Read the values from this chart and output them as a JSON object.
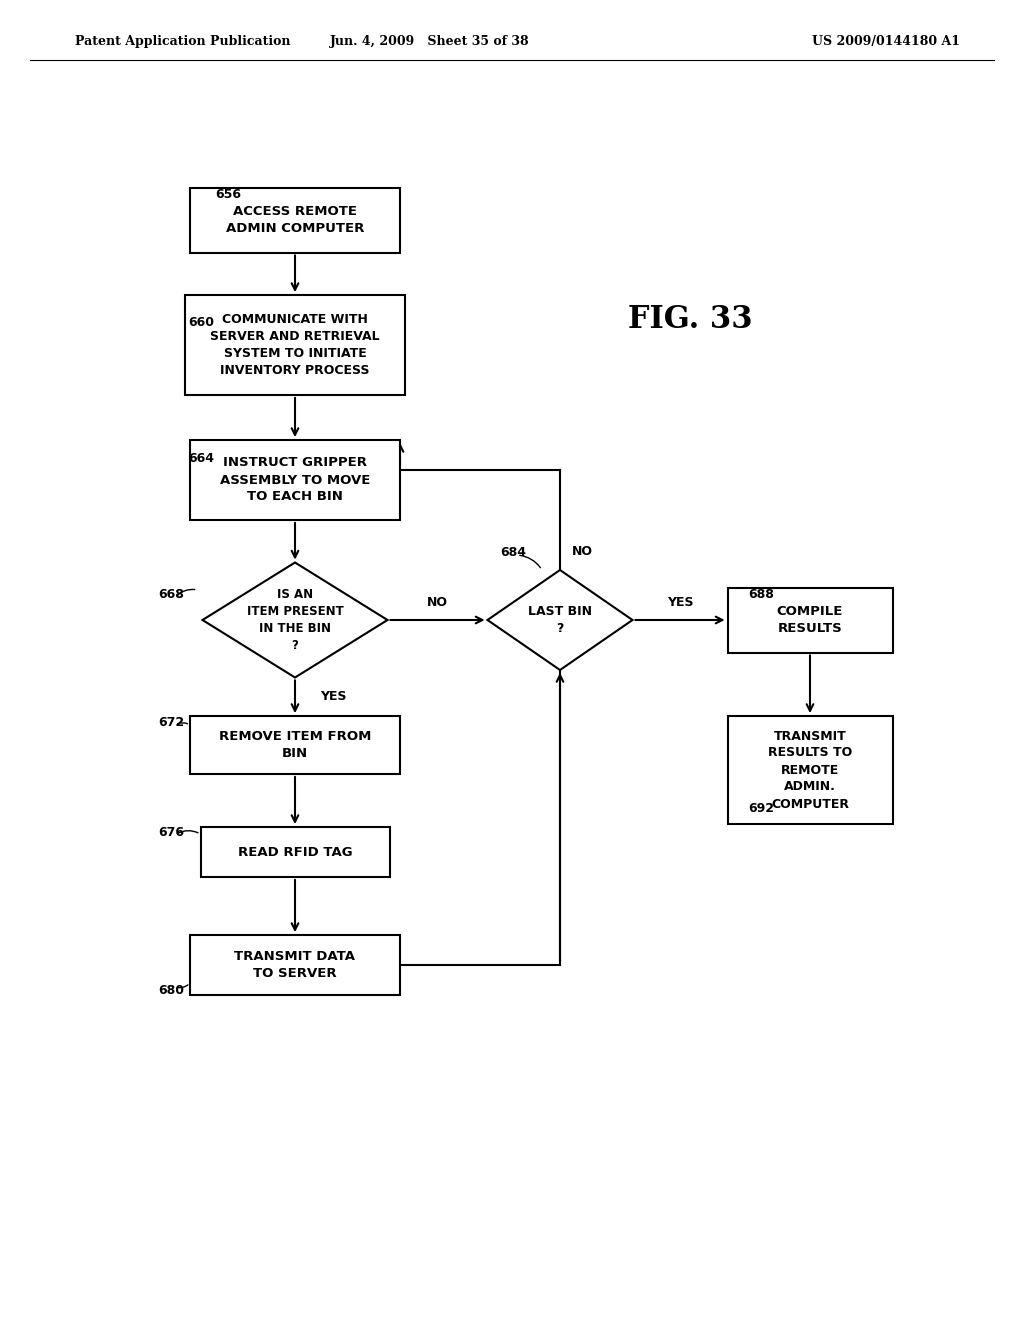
{
  "header_left": "Patent Application Publication",
  "header_center": "Jun. 4, 2009   Sheet 35 of 38",
  "header_right": "US 2009/0144180 A1",
  "fig_label": "FIG. 33",
  "bg_color": "#ffffff",
  "node_656": "ACCESS REMOTE\nADMIN COMPUTER",
  "node_660": "COMMUNICATE WITH\nSERVER AND RETRIEVAL\nSYSTEM TO INITIATE\nINVENTORY PROCESS",
  "node_664": "INSTRUCT GRIPPER\nASSEMBLY TO MOVE\nTO EACH BIN",
  "node_668": "IS AN\nITEM PRESENT\nIN THE BIN\n?",
  "node_672": "REMOVE ITEM FROM\nBIN",
  "node_676": "READ RFID TAG",
  "node_680": "TRANSMIT DATA\nTO SERVER",
  "node_684": "LAST BIN\n?",
  "node_688": "COMPILE\nRESULTS",
  "node_692": "TRANSMIT\nRESULTS TO\nREMOTE\nADMIN.\nCOMPUTER"
}
